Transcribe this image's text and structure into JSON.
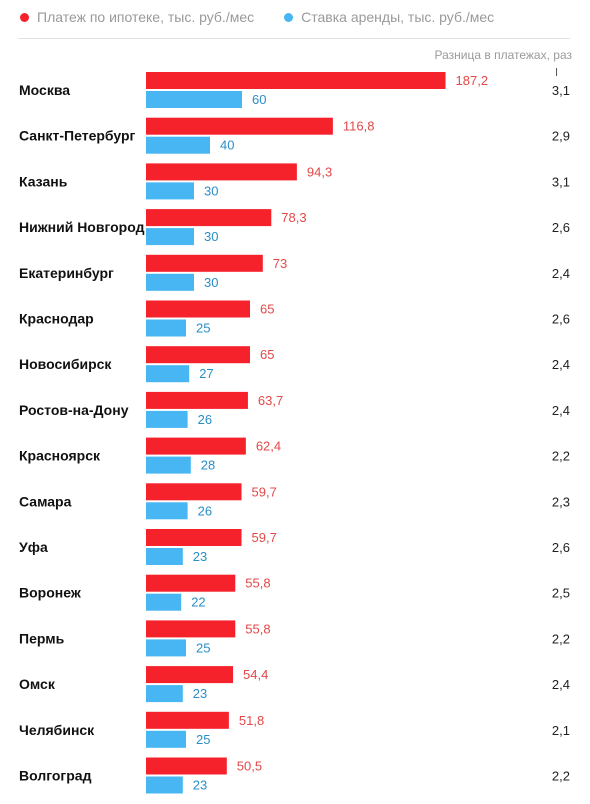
{
  "chart_data": {
    "type": "bar",
    "orientation": "horizontal",
    "categories": [
      "Москва",
      "Санкт-Петербург",
      "Казань",
      "Нижний Новгород",
      "Екатеринбург",
      "Краснодар",
      "Новосибирск",
      "Ростов-на-Дону",
      "Красноярск",
      "Самара",
      "Уфа",
      "Воронеж",
      "Пермь",
      "Омск",
      "Челябинск",
      "Волгоград"
    ],
    "series": [
      {
        "name": "Платеж по ипотеке, тыс. руб./мес",
        "color": "#f5212b",
        "values": [
          187.2,
          116.8,
          94.3,
          78.3,
          73,
          65,
          65,
          63.7,
          62.4,
          59.7,
          59.7,
          55.8,
          55.8,
          54.4,
          51.8,
          50.5
        ],
        "labels": [
          "187,2",
          "116,8",
          "94,3",
          "78,3",
          "73",
          "65",
          "65",
          "63,7",
          "62,4",
          "59,7",
          "59,7",
          "55,8",
          "55,8",
          "54,4",
          "51,8",
          "50,5"
        ]
      },
      {
        "name": "Ставка аренды, тыс. руб./мес",
        "color": "#47b6f2",
        "values": [
          60,
          40,
          30,
          30,
          30,
          25,
          27,
          26,
          28,
          26,
          23,
          22,
          25,
          23,
          25,
          23
        ],
        "labels": [
          "60",
          "40",
          "30",
          "30",
          "30",
          "25",
          "27",
          "26",
          "28",
          "26",
          "23",
          "22",
          "25",
          "23",
          "25",
          "23"
        ]
      }
    ],
    "ratio": {
      "title": "Разница в платежах, раз",
      "values": [
        "3,1",
        "2,9",
        "3,1",
        "2,6",
        "2,4",
        "2,6",
        "2,4",
        "2,4",
        "2,2",
        "2,3",
        "2,6",
        "2,5",
        "2,2",
        "2,4",
        "2,1",
        "2,2"
      ]
    },
    "legend": "top-left",
    "grid": false
  }
}
